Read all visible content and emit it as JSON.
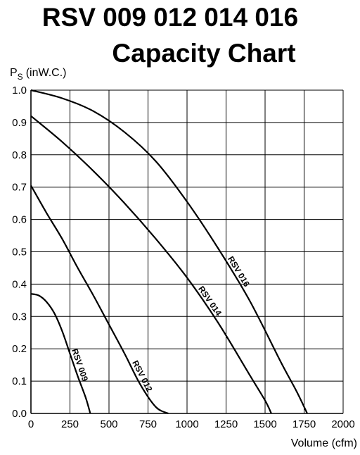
{
  "chart_data": {
    "type": "line",
    "title_line1": "RSV 009 012 014 016",
    "title_line2": "Capacity Chart",
    "ylabel_main": "P",
    "ylabel_sub": "S",
    "ylabel_unit": "(inW.C.)",
    "xlabel": "Volume (cfm)",
    "xlim": [
      0,
      2000
    ],
    "ylim": [
      0,
      1.0
    ],
    "grid": true,
    "xticks": [
      0,
      250,
      500,
      750,
      1000,
      1250,
      1500,
      1750,
      2000
    ],
    "yticks": [
      0.0,
      0.1,
      0.2,
      0.3,
      0.4,
      0.5,
      0.6,
      0.7,
      0.8,
      0.9,
      1.0
    ],
    "xtick_labels": [
      "0",
      "250",
      "500",
      "750",
      "1000",
      "1250",
      "1500",
      "1750",
      "2000"
    ],
    "ytick_labels": [
      "0.0",
      "0.1",
      "0.2",
      "0.3",
      "0.4",
      "0.5",
      "0.6",
      "0.7",
      "0.8",
      "0.9",
      "1.0"
    ],
    "series": [
      {
        "name": "RSV 009",
        "points": [
          [
            0,
            0.37
          ],
          [
            50,
            0.365
          ],
          [
            100,
            0.345
          ],
          [
            150,
            0.31
          ],
          [
            200,
            0.255
          ],
          [
            250,
            0.185
          ],
          [
            300,
            0.115
          ],
          [
            350,
            0.05
          ],
          [
            380,
            0.0
          ]
        ]
      },
      {
        "name": "RSV 012",
        "points": [
          [
            0,
            0.705
          ],
          [
            100,
            0.62
          ],
          [
            200,
            0.54
          ],
          [
            300,
            0.45
          ],
          [
            400,
            0.365
          ],
          [
            500,
            0.275
          ],
          [
            600,
            0.185
          ],
          [
            700,
            0.09
          ],
          [
            800,
            0.02
          ],
          [
            880,
            0.0
          ]
        ]
      },
      {
        "name": "RSV 014",
        "points": [
          [
            0,
            0.92
          ],
          [
            200,
            0.84
          ],
          [
            400,
            0.75
          ],
          [
            600,
            0.65
          ],
          [
            800,
            0.54
          ],
          [
            1000,
            0.42
          ],
          [
            1200,
            0.28
          ],
          [
            1400,
            0.12
          ],
          [
            1500,
            0.04
          ],
          [
            1540,
            0.0
          ]
        ]
      },
      {
        "name": "RSV 016",
        "points": [
          [
            0,
            1.0
          ],
          [
            200,
            0.975
          ],
          [
            400,
            0.935
          ],
          [
            600,
            0.87
          ],
          [
            800,
            0.78
          ],
          [
            1000,
            0.655
          ],
          [
            1200,
            0.51
          ],
          [
            1400,
            0.35
          ],
          [
            1600,
            0.16
          ],
          [
            1700,
            0.07
          ],
          [
            1770,
            0.0
          ]
        ]
      }
    ]
  }
}
